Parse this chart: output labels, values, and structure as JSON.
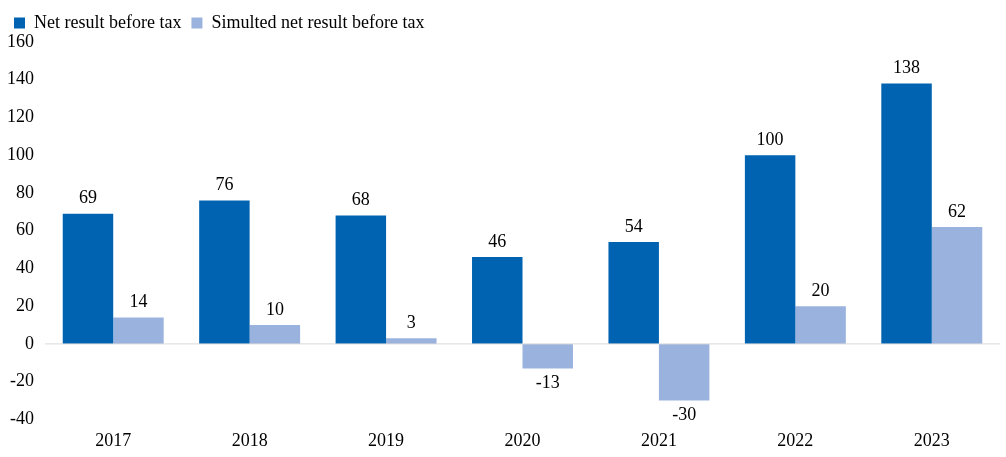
{
  "chart_data": {
    "type": "bar",
    "categories": [
      "2017",
      "2018",
      "2019",
      "2020",
      "2021",
      "2022",
      "2023"
    ],
    "series": [
      {
        "name": "Net result before tax",
        "color": "#0063b1",
        "values": [
          69,
          76,
          68,
          46,
          54,
          100,
          138
        ]
      },
      {
        "name": "Simulted net result before tax",
        "color": "#9ab3de",
        "values": [
          14,
          10,
          3,
          -13,
          -30,
          20,
          62
        ]
      }
    ],
    "ylim": [
      -40,
      160
    ],
    "yticks": [
      -40,
      -20,
      0,
      20,
      40,
      60,
      80,
      100,
      120,
      140,
      160
    ],
    "grid": false,
    "ref_lines": [
      {
        "axis": "y",
        "value": 0,
        "color": "#d9d9d9"
      }
    ],
    "legend": "top left",
    "data_labels": true
  }
}
